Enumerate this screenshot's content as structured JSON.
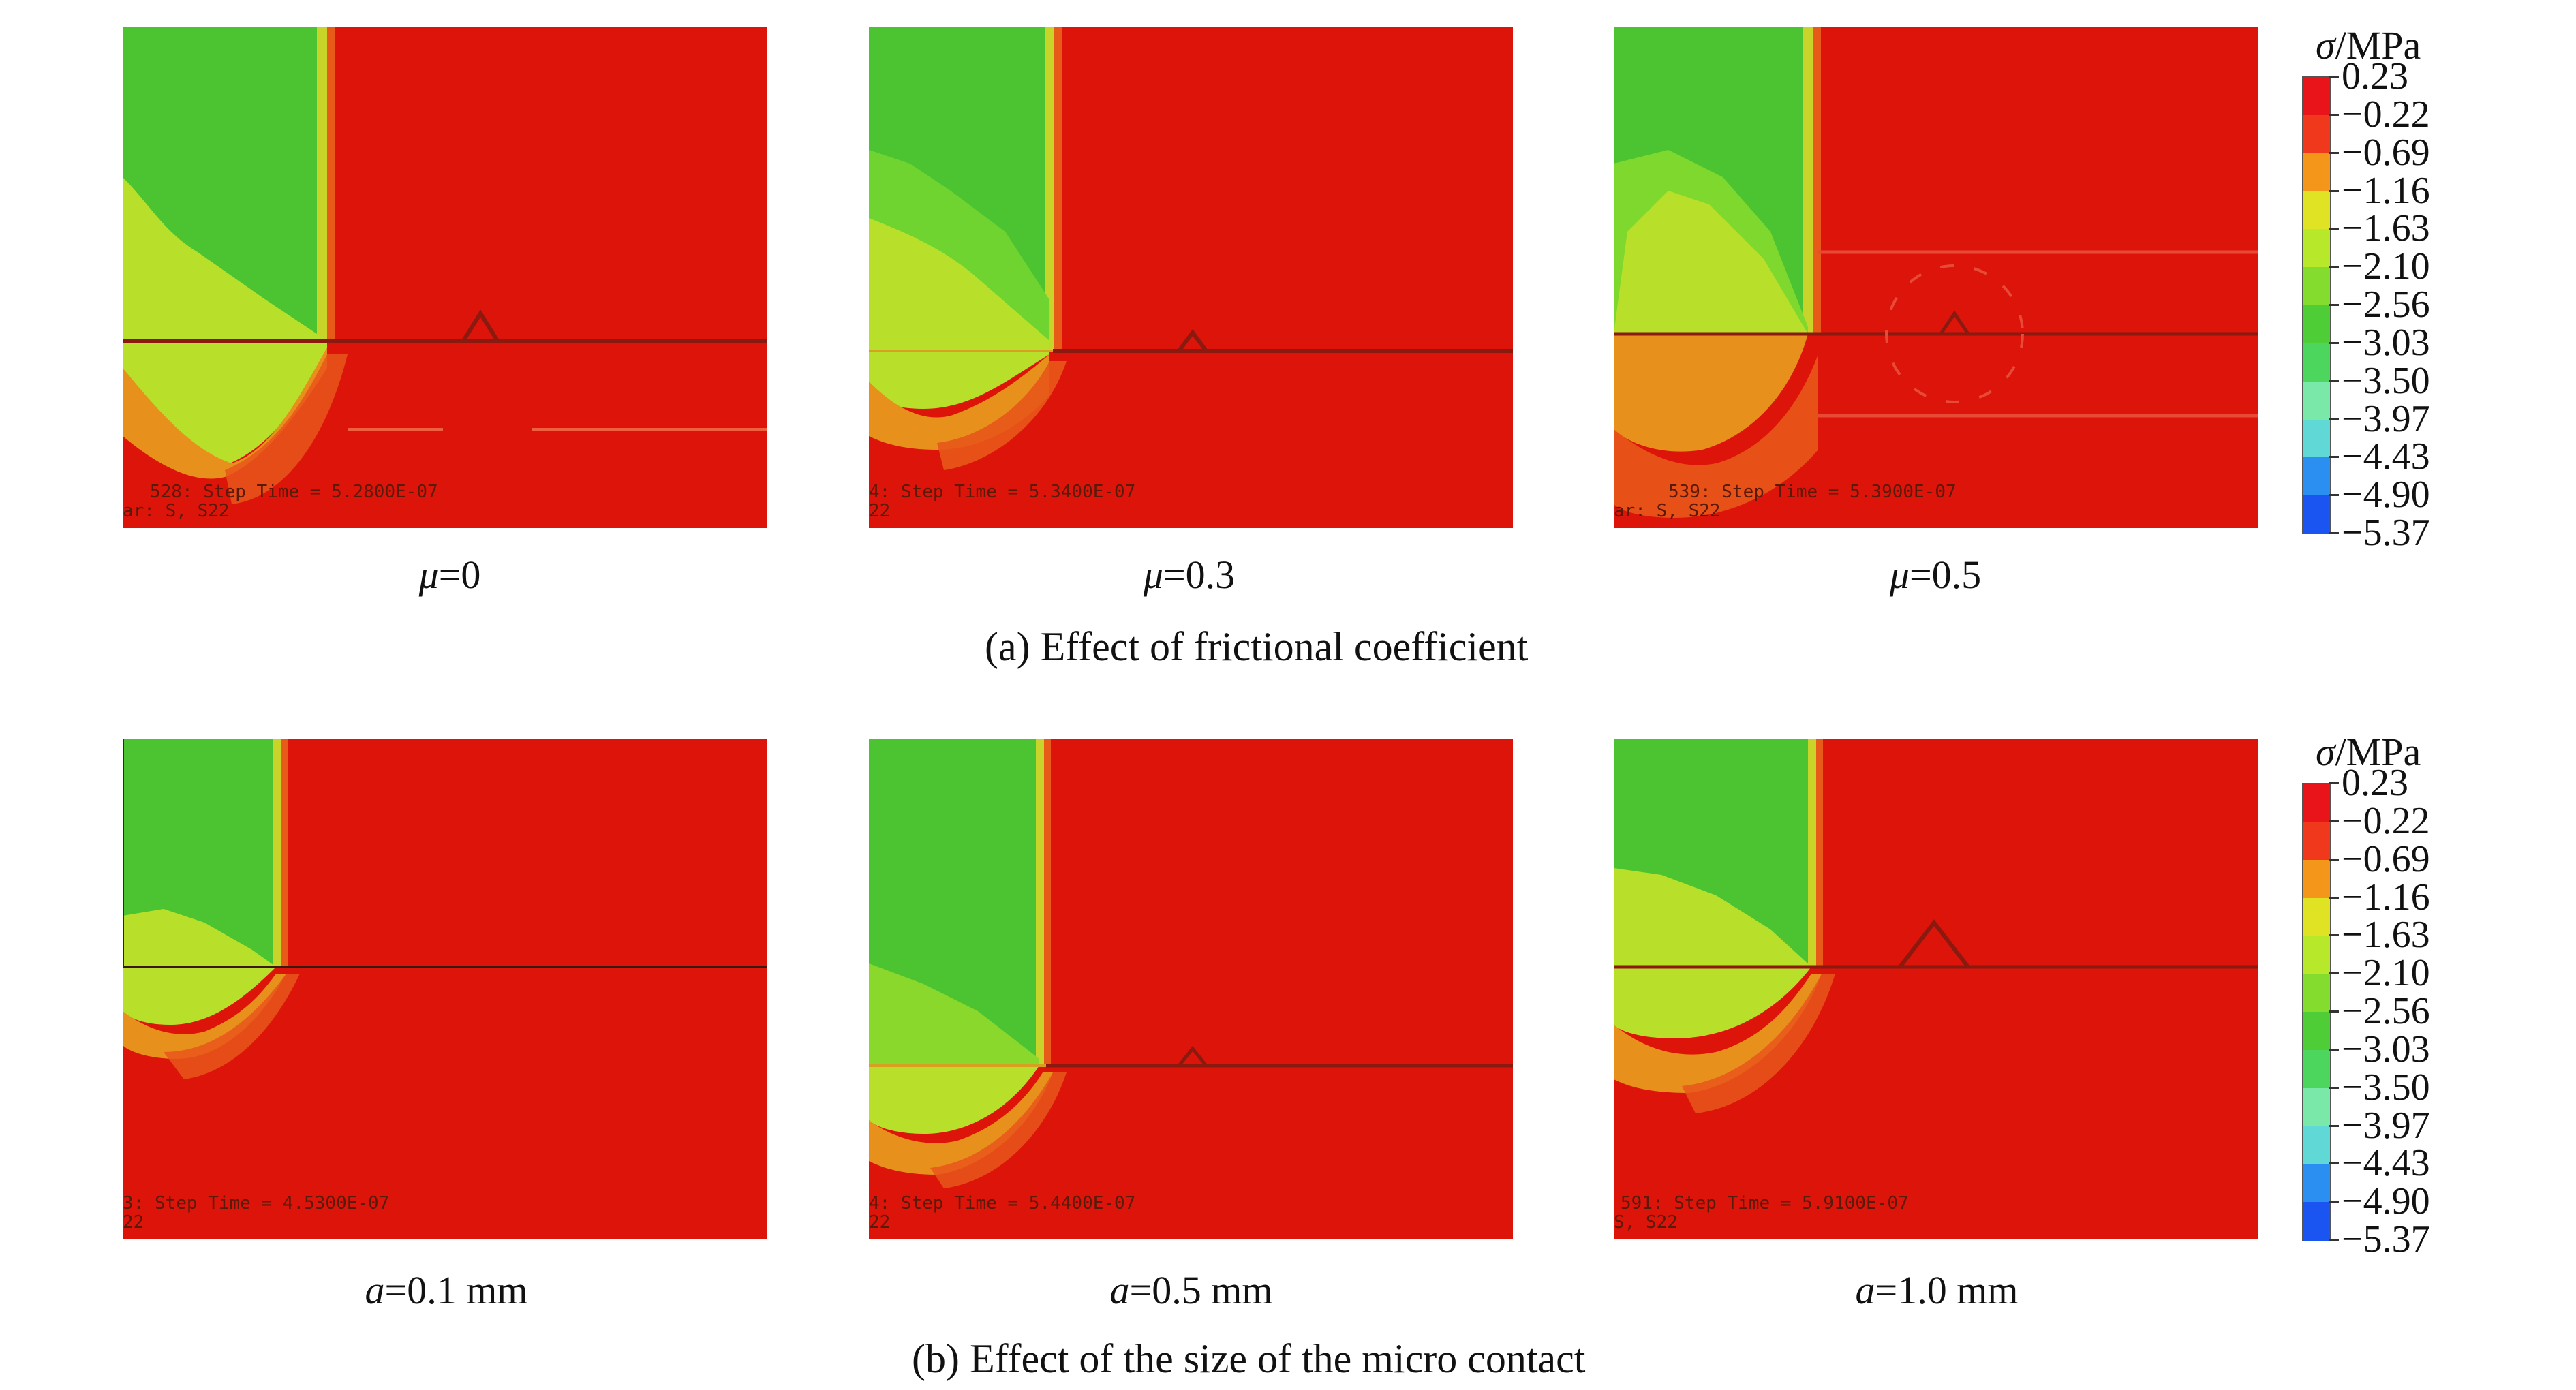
{
  "legend": {
    "title_symbol": "σ",
    "title_unit": "/MPa",
    "levels": [
      "0.23",
      "−0.22",
      "−0.69",
      "−1.16",
      "−1.63",
      "−2.10",
      "−2.56",
      "−3.03",
      "−3.50",
      "−3.97",
      "−4.43",
      "−4.90",
      "−5.37"
    ],
    "colors": [
      "#e8141a",
      "#f0381c",
      "#f39619",
      "#dfe324",
      "#b8e82a",
      "#84dc2e",
      "#4fcd36",
      "#4cd65e",
      "#7ae8a8",
      "#5fd8d6",
      "#2a8ff0",
      "#1a55f2",
      "#0a22e6"
    ]
  },
  "row_a": {
    "subcaption": "(a) Effect of frictional coefficient",
    "panels": [
      {
        "var": "μ",
        "value": "=0",
        "step_text": "528: Step Time =  5.2800E-07",
        "corner_text": "ar: S, S22"
      },
      {
        "var": "μ",
        "value": "=0.3",
        "step_text": "4: Step Time =  5.3400E-07",
        "corner_text": "22"
      },
      {
        "var": "μ",
        "value": "=0.5",
        "step_text": "539: Step Time =  5.3900E-07",
        "corner_text": "ar: S, S22"
      }
    ]
  },
  "row_b": {
    "subcaption": "(b) Effect of the size of the micro contact",
    "panels": [
      {
        "var": "a",
        "value": "=0.1 mm",
        "step_text": "3: Step Time =  4.5300E-07",
        "corner_text": "22"
      },
      {
        "var": "a",
        "value": "=0.5 mm",
        "step_text": "4: Step Time =  5.4400E-07",
        "corner_text": "22"
      },
      {
        "var": "a",
        "value": "=1.0 mm",
        "step_text": "591: Step Time =  5.9100E-07",
        "corner_text": "S, S22"
      }
    ]
  },
  "colors": {
    "field_red": "#dc1409",
    "field_green": "#4cc432",
    "field_yellow": "#b8e02a",
    "field_orange": "#e8901c"
  }
}
